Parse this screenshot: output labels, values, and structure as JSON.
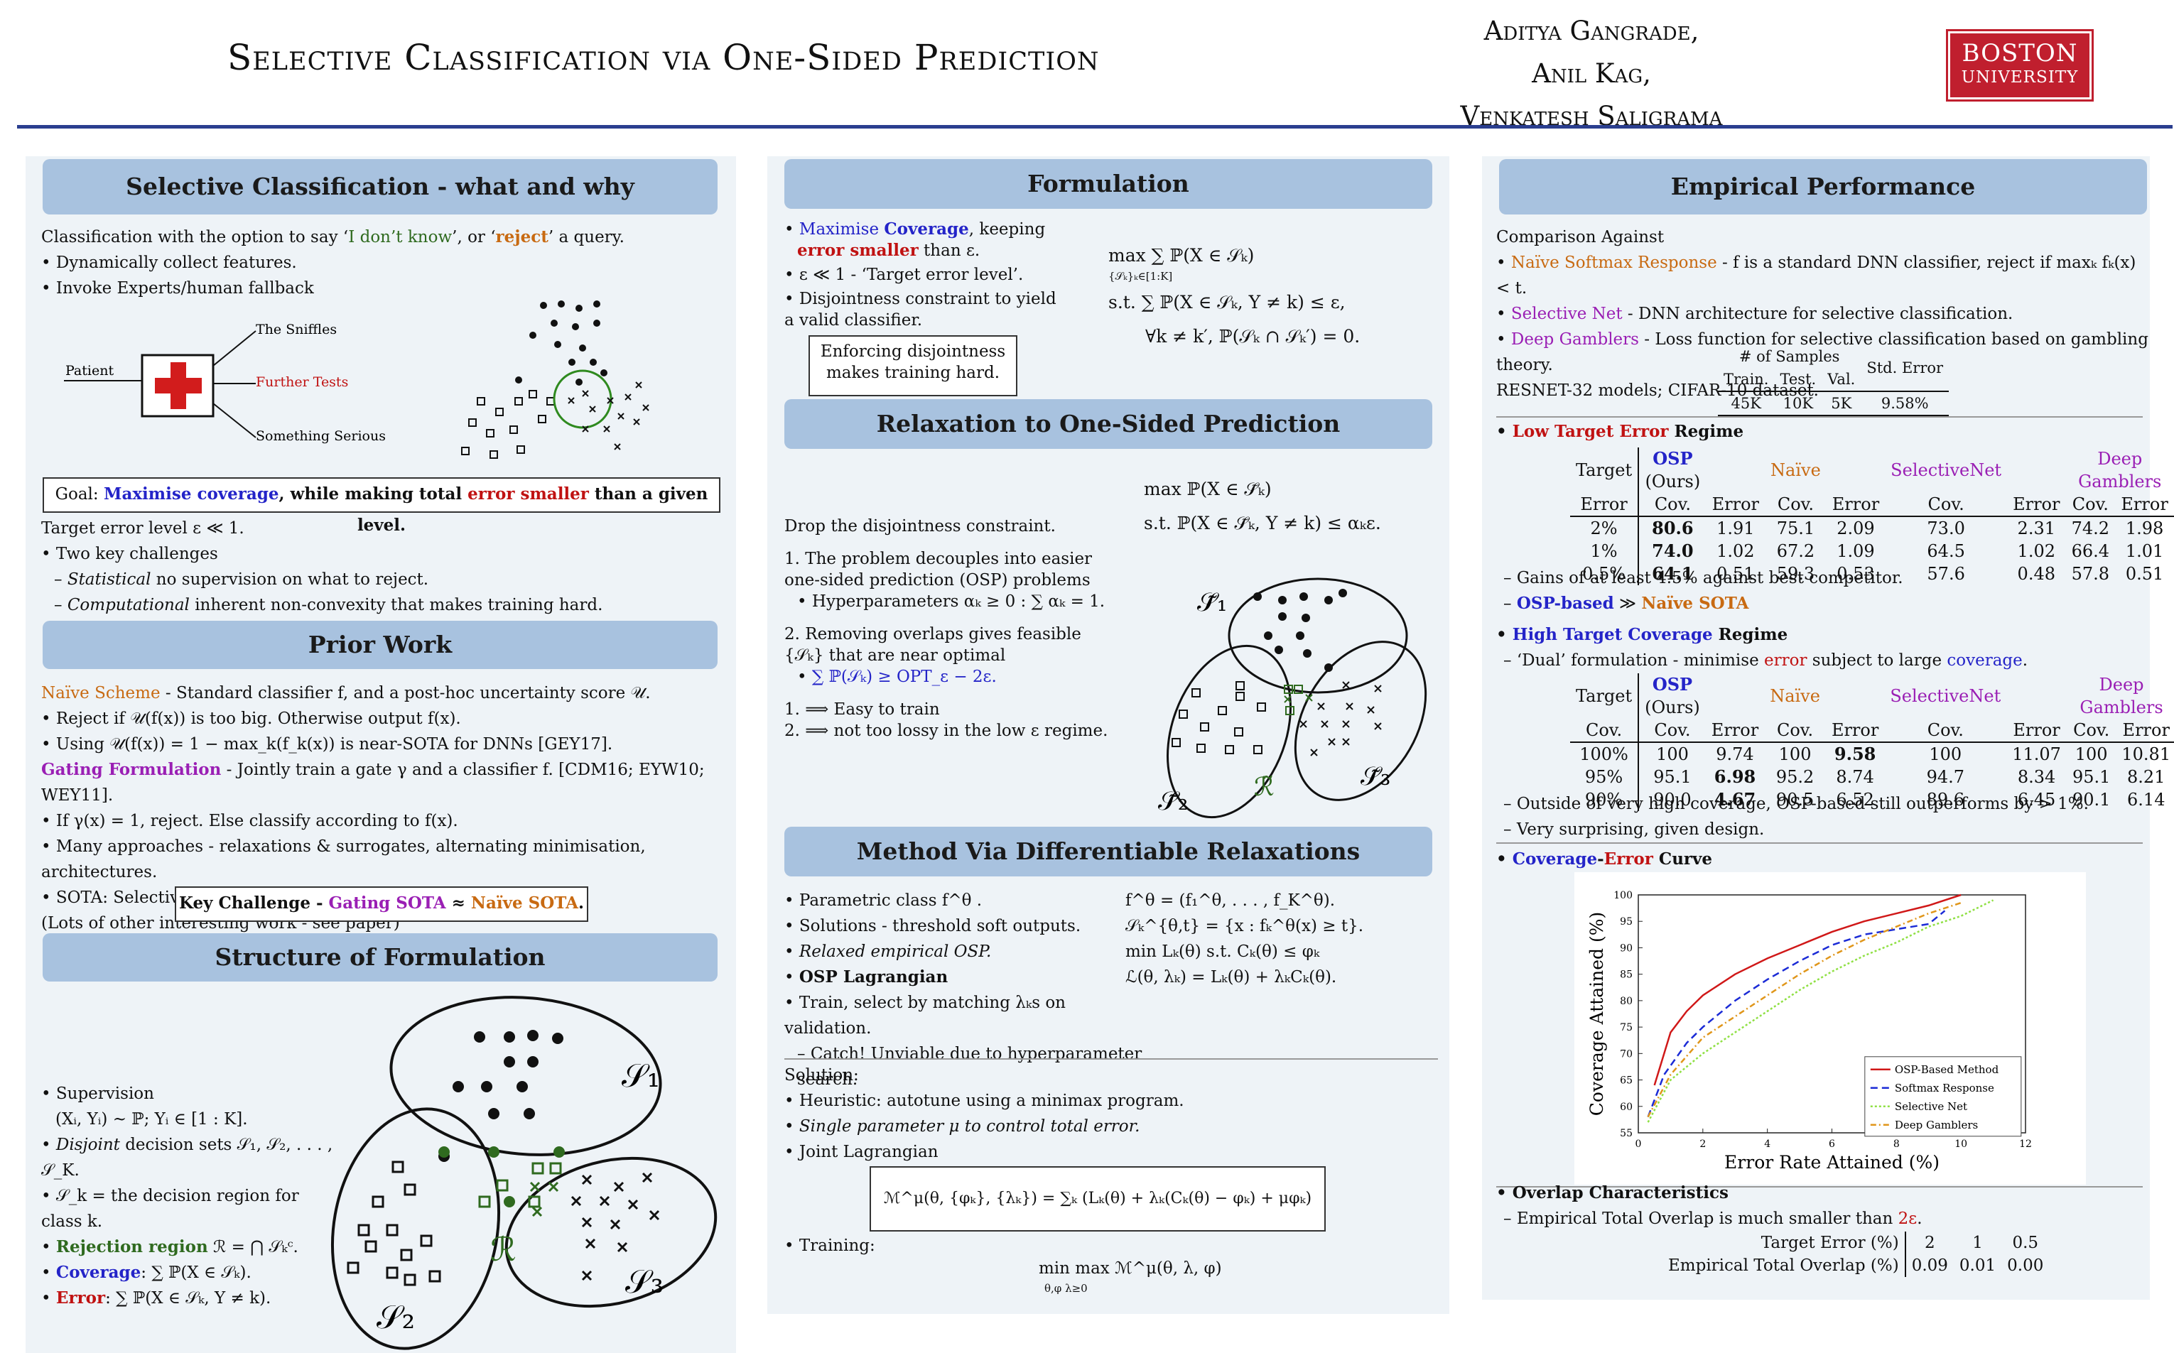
{
  "header": {
    "title": "Selective Classification via One-Sided Prediction",
    "authors": [
      "Aditya Gangrade,",
      "Anil Kag,",
      "Venkatesh Saligrama"
    ],
    "logo_line1": "BOSTON",
    "logo_line2": "UNIVERSITY"
  },
  "col1": {
    "sec1": {
      "heading": "Selective Classification - what and why",
      "intro_a": "Classification with the option to say ‘",
      "intro_idk": "I don’t know",
      "intro_b": "’, or ‘",
      "intro_reject": "reject",
      "intro_c": "’ a query.",
      "bullet1": "Dynamically collect features.",
      "bullet2": "Invoke Experts/human fallback",
      "fig_patient": "Patient",
      "fig_sniffles": "The Sniffles",
      "fig_tests": "Further Tests",
      "fig_serious": "Something Serious",
      "goal_a": "Goal: ",
      "goal_cov": "Maximise coverage",
      "goal_b": ", while making total ",
      "goal_err": "error smaller",
      "goal_c": " than a given level.",
      "target": "Target error level ε ≪ 1.",
      "challenges": "Two key challenges",
      "stat_a": "Statistical",
      "stat_b": " no supervision on what to reject.",
      "comp_a": "Computational",
      "comp_b": " inherent non-convexity that makes training hard."
    },
    "sec2": {
      "heading": "Prior Work",
      "naive_a": "Naïve Scheme",
      "naive_b": " - Standard classifier f, and a post-hoc uncertainty score 𝒰.",
      "b1": "Reject if 𝒰(f(x)) is too big. Otherwise output f(x).",
      "b2": "Using 𝒰(f(x)) = 1 − max_k(f_k(x)) is near-SOTA for DNNs [GEY17].",
      "gate_a": "Gating Formulation",
      "gate_b": " - Jointly train a gate γ and a classifier f. [CDM16; EYW10; WEY11].",
      "b3": "If γ(x) = 1, reject. Else classify according to f(x).",
      "b4": "Many approaches - relaxations & surrogates, alternating minimisation, architectures.",
      "b5": "SOTA: Selective Net [GEY19], Deep Gamblers [Liu+19].",
      "b6": "(Lots of other interesting work - see paper)",
      "key_a": "Key Challenge - ",
      "key_gate": "Gating SOTA",
      "key_b": " ≈ ",
      "key_naive": "Naïve SOTA",
      "key_c": "."
    },
    "sec3": {
      "heading": "Structure of Formulation",
      "l1": "Supervision",
      "l2": "(Xᵢ, Yᵢ) ~ ℙ; Yᵢ ∈ [1 : K].",
      "l3a": "Disjoint",
      "l3b": " decision sets 𝒮₁, 𝒮₂, . . . , 𝒮_K.",
      "l4": "𝒮_k = the decision region for class k.",
      "l5a": "Rejection region",
      "l5b": " ℛ = ⋂ 𝒮ₖᶜ.",
      "l6a": "Coverage",
      "l6b": ": ∑ ℙ(X ∈ 𝒮ₖ).",
      "l7a": "Error",
      "l7b": ": ∑ ℙ(X ∈ 𝒮ₖ, Y ≠ k).",
      "s1": "𝒮₁",
      "s2": "𝒮₂",
      "s3": "𝒮₃",
      "r": "ℛ"
    }
  },
  "col2": {
    "sec1": {
      "heading": "Formulation",
      "b1a": "Maximise ",
      "b1b": "Coverage",
      ", ": "",
      "b1c": ", keeping",
      "b1d": "error smaller",
      "b1e": " than ε.",
      "b2": "ε ≪ 1 - ‘Target error level’.",
      "b3": "Disjointness constraint to yield a valid classifier.",
      "box": "Enforcing disjointness makes training hard.",
      "eq1": "max ∑ ℙ(X ∈ 𝒮ₖ)",
      "eq1sub": "{𝒮ₖ}ₖ∈[1:K]",
      "eq2": "s.t. ∑ ℙ(X ∈ 𝒮ₖ, Y ≠ k) ≤ ε,",
      "eq3": "∀k ≠ k′, ℙ(𝒮ₖ ∩ 𝒮ₖ′) = 0."
    },
    "sec2": {
      "heading": "Relaxation to One-Sided Prediction",
      "eq1": "max ℙ(X ∈ 𝒮̃ₖ)",
      "eq2": "s.t. ℙ(X ∈ 𝒮̃ₖ, Y ≠ k) ≤ αₖε.",
      "drop": "Drop the disjointness constraint.",
      "p1": "1. The problem decouples into easier one-sided prediction (OSP) problems",
      "p1b": "Hyperparameters αₖ ≥ 0 : ∑ αₖ = 1.",
      "p2": "2. Removing overlaps gives feasible {𝒮ₖ} that are near optimal",
      "p2b": "∑ ℙ(𝒮ₖ) ≥ OPT_ε − 2ε.",
      "c1": "1.  ⟹  Easy to train",
      "c2": "2.  ⟹  not too lossy in the low ε regime.",
      "s1": "𝒮̃₁",
      "s2": "𝒮̃₂",
      "s3": "𝒮̃₃",
      "r": "ℛ̃"
    },
    "sec3": {
      "heading": "Method Via Differentiable Relaxations",
      "b1": "Parametric class f^θ .",
      "b2": "Solutions - threshold soft outputs.",
      "b3": "Relaxed empirical OSP.",
      "b4": "OSP Lagrangian",
      "b5": "Train, select by matching λₖs on validation.",
      "b6": "Catch! Unviable due to hyperparameter search.",
      "r1": "f^θ = (f₁^θ, . . . , f_K^θ).",
      "r2": "𝒮ₖ^{θ,t} = {x : fₖ^θ(x) ≥ t}.",
      "r3": "min Lₖ(θ)  s.t.  Cₖ(θ) ≤ φₖ",
      "r4": "ℒ(θ, λₖ) = Lₖ(θ) + λₖCₖ(θ).",
      "sol": "Solution:",
      "s1": "Heuristic: autotune using a minimax program.",
      "s2": "Single parameter μ to control total error.",
      "s3": "Joint Lagrangian",
      "eqbox": "ℳ^μ(θ, {φₖ}, {λₖ}) = ∑ₖ (Lₖ(θ) + λₖ(Cₖ(θ) − φₖ) + μφₖ)",
      "train": "Training:",
      "traineq": "min max ℳ^μ(θ, λ, φ)",
      "trainsub": "θ,φ   λ≥0"
    }
  },
  "col3": {
    "heading": "Empirical Performance",
    "cmp": "Comparison Against",
    "m1a": "Naïve Softmax Response",
    "m1b": " - f is a standard DNN classifier, reject if maxₖ fₖ(x) < t.",
    "m2a": "Selective Net",
    "m2b": " - DNN architecture for selective classification.",
    "m3a": "Deep Gamblers",
    "m3b": " - Loss function for selective classification based on gambling theory.",
    "models": "RESNET-32 models; CIFAR-10 dataset.",
    "samples_hdr": "# of Samples",
    "train": "Train.",
    "test": "Test.",
    "val": "Val.",
    "stderr": "Std. Error",
    "ntrain": "45K",
    "ntest": "10K",
    "nval": "5K",
    "nstd": "9.58%",
    "low_a": "Low Target Error",
    "low_b": " Regime",
    "th_target": "Target",
    "th_error": "Error",
    "th_osp": "OSP",
    "th_ours": "(Ours)",
    "th_naive": "Naïve",
    "th_sn": "SelectiveNet",
    "th_dg": "Deep Gamblers",
    "th_cov": "Cov.",
    "th_err": "Error",
    "low_rows": [
      [
        "2%",
        "80.6",
        "1.91",
        "75.1",
        "2.09",
        "73.0",
        "2.31",
        "74.2",
        "1.98"
      ],
      [
        "1%",
        "74.0",
        "1.02",
        "67.2",
        "1.09",
        "64.5",
        "1.02",
        "66.4",
        "1.01"
      ],
      [
        "0.5%",
        "64.1",
        "0.51",
        "59.3",
        "0.53",
        "57.6",
        "0.48",
        "57.8",
        "0.51"
      ]
    ],
    "low_n1": "Gains of at least 4.5% against best competitor.",
    "low_n2a": "OSP-based",
    "low_n2b": " ≫ ",
    "low_n2c": "Naïve SOTA",
    "high_a": "High Target Coverage",
    "high_b": " Regime",
    "dual_a": "‘Dual’ formulation - minimise ",
    "dual_err": "error",
    "dual_b": " subject to large ",
    "dual_cov": "coverage",
    ".": ".",
    "th_cov2": "Cov.",
    "high_rows": [
      [
        "100%",
        "100",
        "9.74",
        "100",
        "9.58",
        "100",
        "11.07",
        "100",
        "10.81"
      ],
      [
        "95%",
        "95.1",
        "6.98",
        "95.2",
        "8.74",
        "94.7",
        "8.34",
        "95.1",
        "8.21"
      ],
      [
        "90%",
        "90.0",
        "4.67",
        "90.5",
        "6.52",
        "89.6",
        "6.45",
        "90.1",
        "6.14"
      ]
    ],
    "high_n1": "Outside of very high coverage, OSP-based still outperforms by > 1%.",
    "high_n2": "Very surprising, given design.",
    "curve_a": "Coverage",
    "curve_b": "-",
    "curve_c": "Error",
    "curve_d": " Curve",
    "overlap": "Overlap Characteristics",
    "overlap_a": "Empirical Total Overlap is much smaller than ",
    "overlap_b": "2ε",
    "ov_t": "Target Error (%)",
    "ov_e": "Empirical Total Overlap (%)",
    "ov_tv": [
      "2",
      "1",
      "0.5"
    ],
    "ov_ev": [
      "0.09",
      "0.01",
      "0.00"
    ]
  },
  "chart_data": {
    "type": "line",
    "xlabel": "Error Rate Attained (%)",
    "ylabel": "Coverage Attained (%)",
    "xlim": [
      0,
      12
    ],
    "ylim": [
      55,
      100
    ],
    "xticks": [
      "0",
      "2",
      "4",
      "6",
      "8",
      "10",
      "12"
    ],
    "yticks": [
      "55",
      "60",
      "65",
      "70",
      "75",
      "80",
      "85",
      "90",
      "95",
      "100"
    ],
    "legend_position": "bottom-right",
    "series": [
      {
        "name": "OSP-Based Method",
        "color": "#d01818",
        "dash": "",
        "x": [
          0.5,
          1,
          1.5,
          2,
          3,
          4,
          5,
          6,
          7,
          8,
          9,
          10
        ],
        "y": [
          64,
          74,
          78,
          81,
          85,
          88,
          90.5,
          93,
          95,
          96.5,
          98,
          100
        ]
      },
      {
        "name": "Softmax Response",
        "color": "#1b2bd6",
        "dash": "10,6",
        "x": [
          0.3,
          0.8,
          1.5,
          2,
          3,
          4,
          5,
          6,
          7,
          8,
          9,
          9.5
        ],
        "y": [
          58,
          66,
          72,
          75,
          80,
          84,
          87.5,
          90.5,
          92.5,
          93.5,
          94.5,
          97
        ]
      },
      {
        "name": "Selective Net",
        "color": "#8fe043",
        "dash": "3,3",
        "x": [
          0.3,
          1,
          2,
          3,
          4,
          5,
          6,
          7,
          8,
          9,
          10,
          11
        ],
        "y": [
          57,
          65,
          70,
          74,
          78,
          82,
          85.5,
          88.5,
          91,
          94,
          96,
          99
        ]
      },
      {
        "name": "Deep Gamblers",
        "color": "#e0961a",
        "dash": "8,4,2,4",
        "x": [
          0.3,
          1,
          2,
          3,
          4,
          5,
          6,
          7,
          8,
          9,
          10
        ],
        "y": [
          58,
          66,
          73,
          77,
          81,
          85,
          88.5,
          91.5,
          94,
          96.5,
          98.5
        ]
      }
    ]
  }
}
